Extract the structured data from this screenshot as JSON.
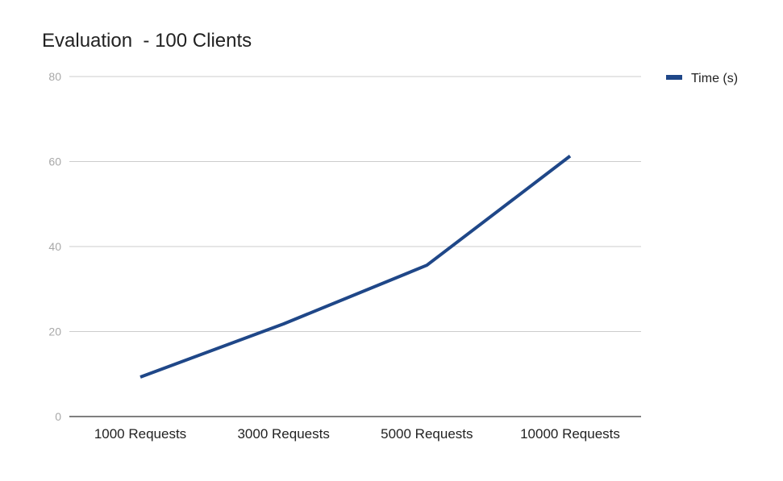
{
  "chart_data": {
    "type": "line",
    "title": "Evaluation  - 100 Clients",
    "categories": [
      "1000 Requests",
      "3000 Requests",
      "5000 Requests",
      "10000 Requests"
    ],
    "series": [
      {
        "name": "Time (s)",
        "values": [
          9.3,
          21.8,
          35.6,
          61.3
        ]
      }
    ],
    "ylim": [
      0,
      80
    ],
    "yticks": [
      0,
      20,
      40,
      60,
      80
    ],
    "grid": true,
    "legend": "right",
    "colors": {
      "series": "#1f4788",
      "grid": "#cccccc",
      "axis": "#333333"
    }
  }
}
